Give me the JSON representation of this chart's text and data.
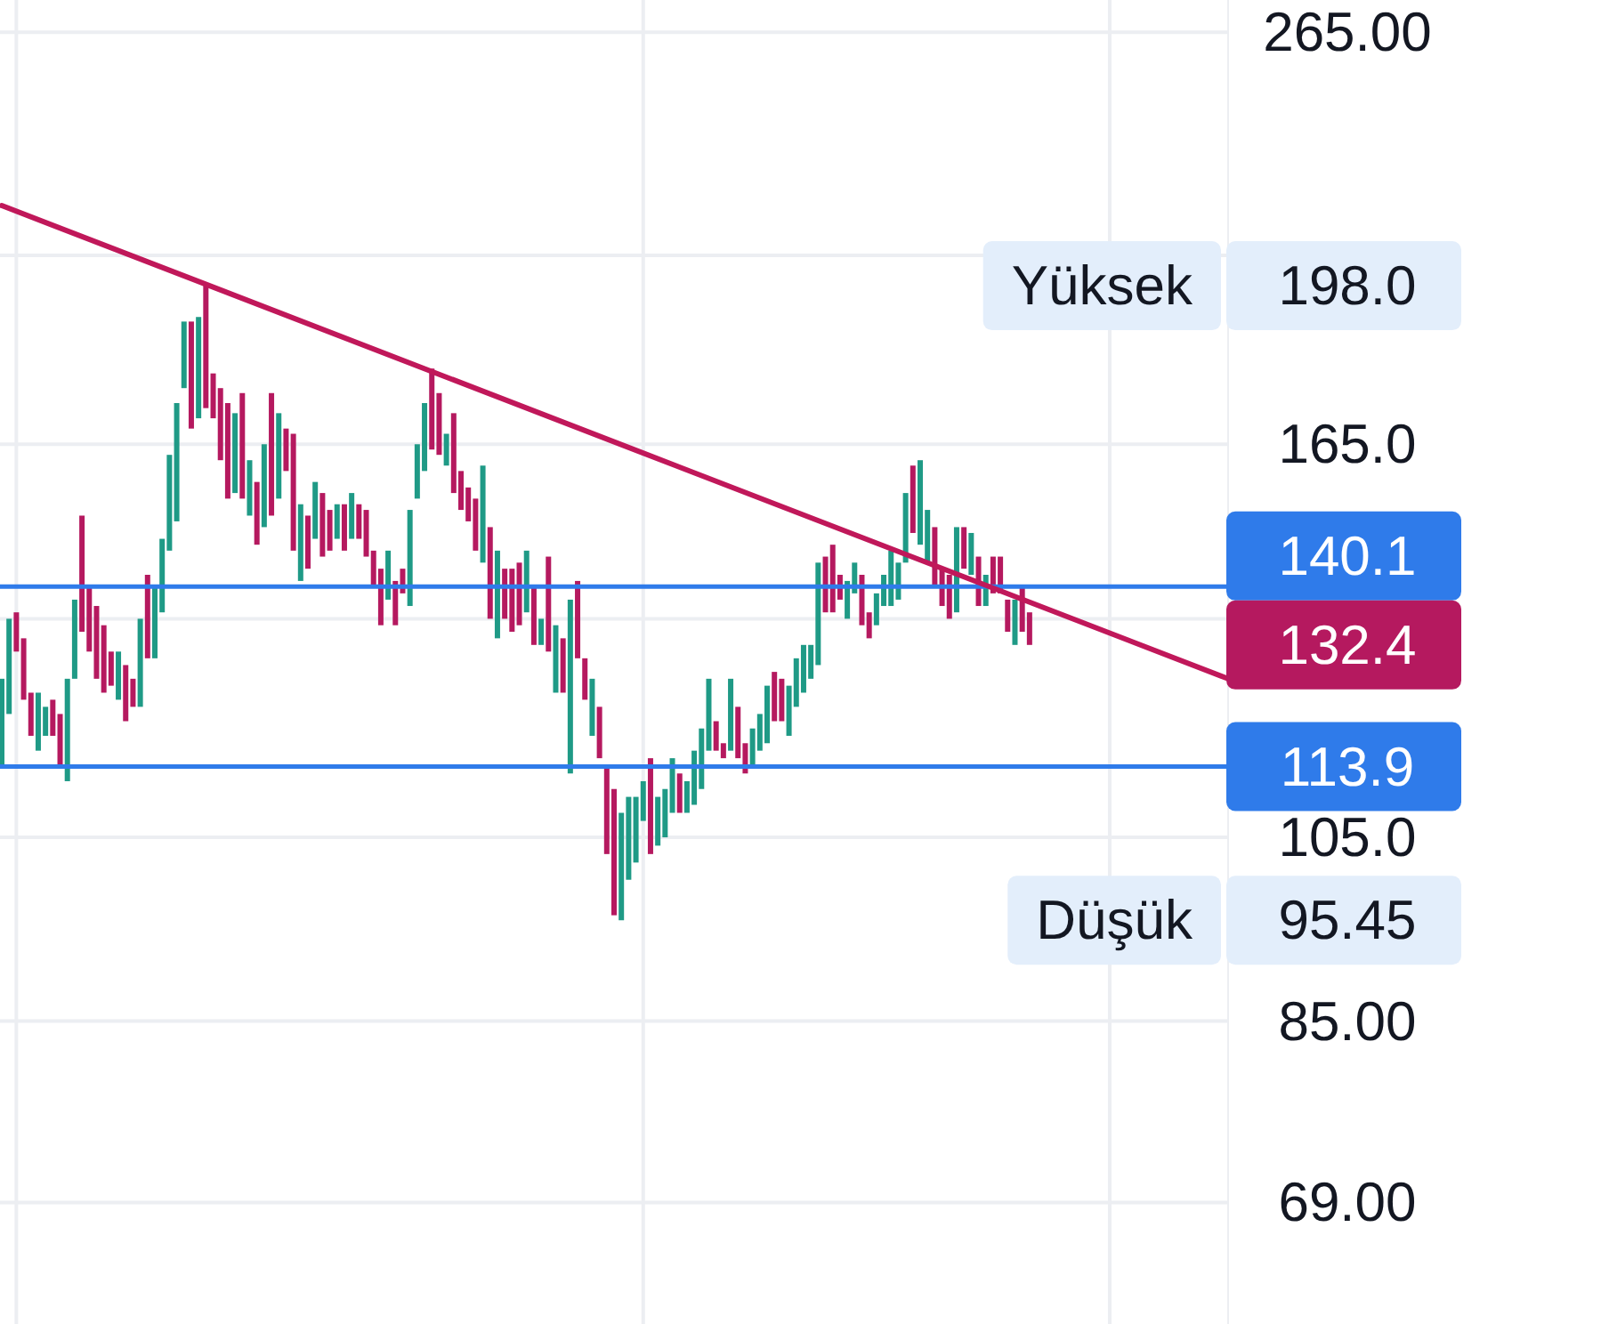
{
  "chart_data": {
    "type": "bar",
    "log": true,
    "grid": true,
    "tick_labels": "y",
    "categories": [
      null,
      null,
      null,
      null,
      null,
      null,
      null,
      null,
      null,
      null,
      null,
      null,
      null,
      null,
      null,
      null,
      null,
      null,
      null,
      null,
      null,
      null,
      null,
      null,
      null,
      null,
      null,
      null,
      null,
      null,
      null,
      null,
      null,
      null,
      null,
      null,
      null,
      null,
      null,
      null,
      null,
      null,
      null,
      null,
      null,
      null,
      null,
      null,
      null,
      null,
      null,
      null,
      null,
      null,
      null,
      null,
      null,
      null,
      null,
      null,
      null,
      null,
      null,
      null,
      null,
      null,
      null,
      null,
      null,
      null,
      null,
      null,
      null,
      null,
      null,
      null,
      null,
      null,
      null,
      null,
      null,
      null,
      null,
      null,
      null,
      null,
      null,
      null,
      null,
      null,
      null,
      null,
      null,
      null,
      null,
      null,
      null,
      null,
      null,
      null,
      null,
      null,
      null,
      null,
      null,
      null,
      null,
      null,
      null,
      null,
      null,
      null,
      null,
      null,
      null,
      null,
      null,
      null,
      null,
      null,
      null,
      null,
      null,
      null,
      null,
      null,
      null,
      null,
      null,
      null,
      null,
      null,
      null,
      null,
      null,
      null,
      null,
      null,
      null,
      null,
      null,
      null,
      null,
      null,
      null,
      null,
      null,
      null,
      null,
      null,
      null,
      null,
      null,
      null,
      null,
      null,
      null,
      null,
      null,
      null,
      null,
      null,
      null,
      null,
      null,
      null,
      null,
      null,
      null
    ],
    "series": [
      {
        "values": [
          12,
          14,
          6,
          9,
          6,
          8,
          4,
          5,
          7,
          14,
          12,
          19,
          10,
          11,
          10,
          5,
          7,
          8,
          4,
          13,
          13,
          11,
          12,
          17,
          22,
          14,
          22,
          21,
          26,
          9,
          14,
          18,
          15,
          20,
          10,
          11,
          15,
          23,
          16,
          8,
          21,
          13,
          9,
          10,
          11,
          7,
          6,
          8,
          8,
          6,
          8,
          6,
          9,
          8,
          7,
          4,
          16,
          10,
          13,
          16,
          12,
          6,
          15,
          7,
          6,
          9,
          17,
          15,
          14,
          8,
          10,
          10,
          10,
          9,
          4,
          15,
          10,
          8,
          25,
          12,
          6,
          8,
          7,
          11,
          15,
          12.55,
          10,
          8,
          5,
          12,
          6,
          6,
          7,
          5,
          4,
          7,
          8,
          10,
          4,
          2,
          10,
          7,
          4,
          5,
          5,
          8,
          7,
          6,
          7,
          7,
          7,
          5,
          16,
          9,
          11,
          4,
          6,
          5,
          8,
          4,
          5,
          5,
          9,
          6,
          12,
          12,
          15,
          9,
          10,
          6,
          7,
          14,
          7,
          7,
          8,
          5,
          6,
          6,
          5,
          7,
          7,
          5,
          null,
          null,
          null,
          null,
          null,
          null,
          null,
          null,
          null,
          null,
          null,
          null,
          null,
          null,
          null,
          null,
          null,
          null,
          null,
          null,
          null,
          null,
          null,
          null,
          null,
          null,
          null
        ],
        "base": [
          114,
          121,
          130,
          123,
          118,
          116,
          118,
          118,
          114,
          112,
          126,
          133,
          130,
          126,
          124,
          125,
          123,
          120,
          122,
          122,
          129,
          129,
          136,
          146,
          151,
          176,
          168,
          170,
          172,
          170,
          162,
          155,
          156,
          155,
          152,
          147,
          150,
          152,
          155,
          160,
          146,
          141,
          143,
          148,
          145,
          146,
          148,
          146,
          148,
          148,
          145,
          140,
          134,
          138,
          134,
          139,
          137,
          155,
          160,
          164,
          163,
          161,
          156,
          153,
          151,
          146,
          144,
          135,
          132,
          135,
          133,
          134,
          136,
          131,
          131,
          130,
          124,
          124,
          113,
          129,
          123,
          118,
          115,
          103,
          96,
          95.45,
          100,
          102,
          107,
          103,
          104,
          105,
          108,
          108,
          108,
          109,
          111,
          116,
          116,
          115,
          116,
          115,
          113,
          114,
          116,
          117,
          120,
          120,
          118,
          122,
          124,
          126,
          128,
          136,
          136,
          138,
          135,
          139,
          134,
          132,
          134,
          137,
          137,
          138,
          144,
          149,
          147,
          144,
          140,
          137,
          135,
          136,
          143,
          142,
          137,
          137,
          139,
          139,
          133,
          131,
          133,
          131,
          null,
          null,
          null,
          null,
          null,
          null,
          null,
          null,
          null,
          null,
          null,
          null,
          null,
          null,
          null,
          null,
          null,
          null,
          null,
          null,
          null,
          null,
          null,
          null,
          null,
          null,
          null
        ],
        "colors": [
          "#1f9a86",
          "#1f9a86",
          "#b5195f",
          "#b5195f",
          "#b5195f",
          "#1f9a86",
          "#1f9a86",
          "#b5195f",
          "#b5195f",
          "#1f9a86",
          "#1f9a86",
          "#b5195f",
          "#b5195f",
          "#b5195f",
          "#b5195f",
          "#b5195f",
          "#1f9a86",
          "#b5195f",
          "#b5195f",
          "#1f9a86",
          "#b5195f",
          "#1f9a86",
          "#1f9a86",
          "#1f9a86",
          "#1f9a86",
          "#1f9a86",
          "#b5195f",
          "#1f9a86",
          "#b5195f",
          "#b5195f",
          "#b5195f",
          "#b5195f",
          "#1f9a86",
          "#b5195f",
          "#1f9a86",
          "#b5195f",
          "#1f9a86",
          "#b5195f",
          "#1f9a86",
          "#b5195f",
          "#b5195f",
          "#1f9a86",
          "#b5195f",
          "#1f9a86",
          "#b5195f",
          "#b5195f",
          "#1f9a86",
          "#b5195f",
          "#1f9a86",
          "#b5195f",
          "#b5195f",
          "#b5195f",
          "#b5195f",
          "#1f9a86",
          "#b5195f",
          "#b5195f",
          "#1f9a86",
          "#1f9a86",
          "#1f9a86",
          "#b5195f",
          "#b5195f",
          "#1f9a86",
          "#b5195f",
          "#b5195f",
          "#b5195f",
          "#b5195f",
          "#1f9a86",
          "#b5195f",
          "#1f9a86",
          "#b5195f",
          "#b5195f",
          "#b5195f",
          "#1f9a86",
          "#b5195f",
          "#1f9a86",
          "#b5195f",
          "#1f9a86",
          "#b5195f",
          "#1f9a86",
          "#b5195f",
          "#b5195f",
          "#1f9a86",
          "#b5195f",
          "#b5195f",
          "#b5195f",
          "#1f9a86",
          "#1f9a86",
          "#1f9a86",
          "#1f9a86",
          "#b5195f",
          "#1f9a86",
          "#1f9a86",
          "#1f9a86",
          "#b5195f",
          "#1f9a86",
          "#1f9a86",
          "#1f9a86",
          "#1f9a86",
          "#b5195f",
          "#b5195f",
          "#1f9a86",
          "#b5195f",
          "#b5195f",
          "#1f9a86",
          "#1f9a86",
          "#1f9a86",
          "#b5195f",
          "#b5195f",
          "#1f9a86",
          "#1f9a86",
          "#1f9a86",
          "#1f9a86",
          "#1f9a86",
          "#b5195f",
          "#b5195f",
          "#b5195f",
          "#1f9a86",
          "#1f9a86",
          "#b5195f",
          "#b5195f",
          "#1f9a86",
          "#1f9a86",
          "#1f9a86",
          "#1f9a86",
          "#1f9a86",
          "#b5195f",
          "#1f9a86",
          "#1f9a86",
          "#b5195f",
          "#b5195f",
          "#b5195f",
          "#1f9a86",
          "#b5195f",
          "#1f9a86",
          "#b5195f",
          "#1f9a86",
          "#b5195f",
          "#b5195f",
          "#b5195f",
          "#1f9a86",
          "#b5195f",
          "#b5195f",
          null,
          null,
          null,
          null,
          null,
          null,
          null,
          null,
          null,
          null,
          null,
          null,
          null,
          null,
          null,
          null,
          null,
          null,
          null,
          null,
          null,
          null,
          null,
          null,
          null,
          null,
          null
        ]
      },
      {
        "type": "line",
        "color": "#c0185a",
        "values": [
          217.1,
          null,
          null,
          null,
          null,
          null,
          null,
          null,
          null,
          null,
          null,
          null,
          null,
          null,
          null,
          null,
          null,
          null,
          null,
          null,
          null,
          null,
          null,
          null,
          null,
          null,
          null,
          null,
          null,
          null,
          null,
          null,
          null,
          null,
          null,
          null,
          null,
          null,
          null,
          null,
          null,
          null,
          null,
          null,
          null,
          null,
          null,
          null,
          null,
          null,
          null,
          null,
          null,
          null,
          null,
          null,
          null,
          null,
          null,
          null,
          null,
          null,
          null,
          null,
          null,
          null,
          null,
          null,
          null,
          null,
          null,
          null,
          null,
          null,
          null,
          null,
          null,
          null,
          null,
          null,
          null,
          null,
          null,
          null,
          null,
          null,
          null,
          null,
          null,
          null,
          null,
          null,
          null,
          null,
          null,
          null,
          null,
          null,
          null,
          null,
          null,
          null,
          null,
          null,
          null,
          null,
          null,
          null,
          null,
          null,
          null,
          null,
          null,
          null,
          null,
          null,
          null,
          null,
          null,
          null,
          null,
          null,
          null,
          null,
          null,
          null,
          null,
          null,
          null,
          null,
          null,
          null,
          null,
          null,
          null,
          null,
          null,
          null,
          null,
          null,
          null,
          null,
          null,
          null,
          null,
          null,
          null,
          null,
          null,
          null,
          null,
          null,
          null,
          null,
          null,
          null,
          null,
          null,
          null,
          null,
          null,
          null,
          null,
          null,
          null,
          null,
          null,
          null,
          126.1
        ]
      }
    ],
    "ylim": [
      60,
      275
    ],
    "yticks": [
      {
        "value": 69,
        "label": "69.00"
      },
      {
        "value": 85,
        "label": "85.00"
      },
      {
        "value": 105,
        "label": "105.0"
      },
      {
        "value": 135,
        "label": null
      },
      {
        "value": 165,
        "label": "165.0"
      },
      {
        "value": 205,
        "label": null
      },
      {
        "value": 265,
        "label": "265.00"
      }
    ],
    "ref_lines": [
      {
        "axis": "y",
        "value": 140.1,
        "label": "140.1",
        "color": "#2f7bea"
      },
      {
        "axis": "y",
        "value": 113.9,
        "label": "113.9",
        "color": "#2f7bea"
      }
    ],
    "annotations": [
      "132.4",
      "Yüksek",
      "198.0",
      "Düşük",
      "95.45"
    ]
  }
}
